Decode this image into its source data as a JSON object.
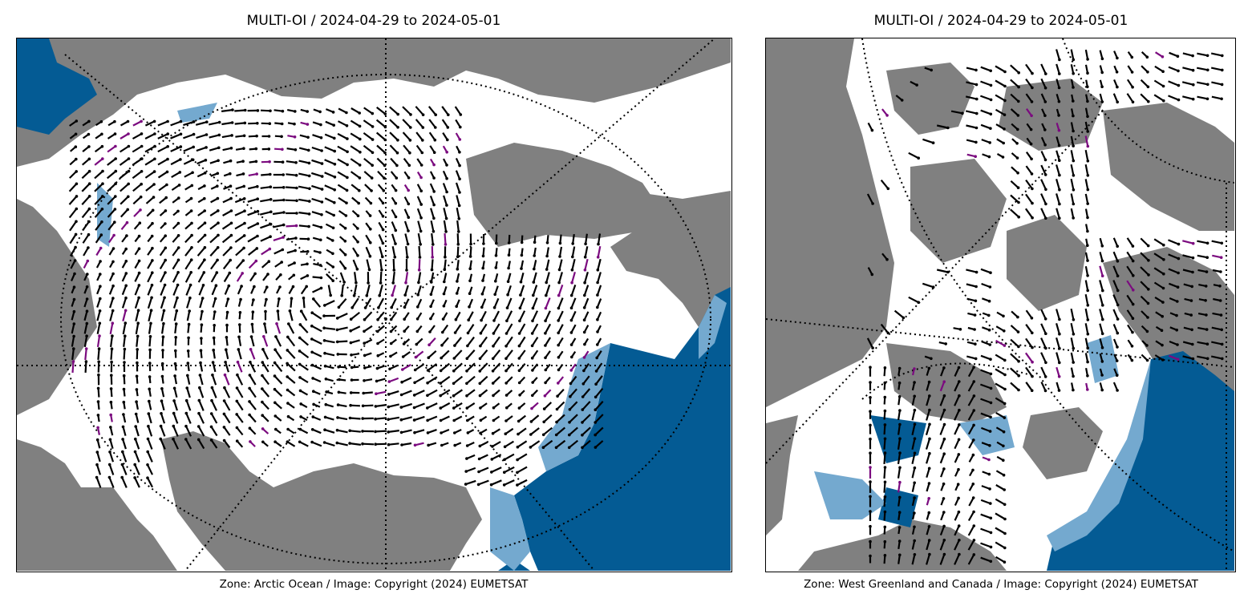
{
  "panels": [
    {
      "title": "MULTI-OI / 2024-04-29 to 2024-05-01",
      "caption": "Zone: Arctic Ocean / Image: Copyright (2024) EUMETSAT",
      "zone": "Arctic Ocean"
    },
    {
      "title": "MULTI-OI / 2024-04-29 to 2024-05-01",
      "caption": "Zone: West Greenland and Canada / Image: Copyright (2024) EUMETSAT",
      "zone": "West Greenland and Canada"
    }
  ],
  "colors": {
    "land": "#808080",
    "ice": "#ffffff",
    "open_water": "#045b94",
    "marginal_ice": "#74a9cf",
    "drift_vector": "#000000",
    "flagged_vector": "#7b0b7f",
    "graticule": "#000000"
  },
  "icons": {
    "drift_vector": "arrow-icon",
    "graticule": "dotted-line"
  }
}
